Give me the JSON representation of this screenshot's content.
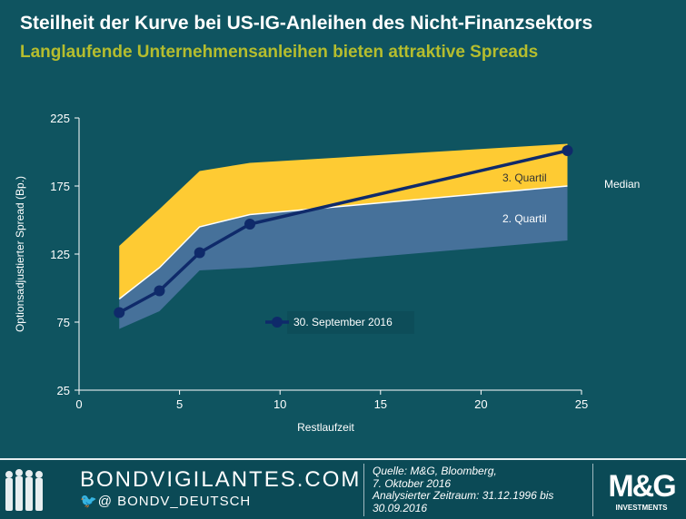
{
  "title": "Steilheit der Kurve bei US-IG-Anleihen des Nicht-Finanzsektors",
  "subtitle": "Langlaufende Unternehmensanleihen bieten attraktive Spreads",
  "chart_data": {
    "type": "area",
    "xlabel": "Restlaufzeit",
    "ylabel": "Optionsadjustierter Spread (Bp.)",
    "xlim": [
      0,
      25
    ],
    "ylim": [
      25,
      225
    ],
    "xticks": [
      "0",
      "5",
      "10",
      "15",
      "20",
      "25"
    ],
    "yticks": [
      "25",
      "75",
      "125",
      "175",
      "225"
    ],
    "band_x": [
      2,
      4,
      6,
      8.5,
      24.3
    ],
    "lower_quartile": [
      70,
      83,
      113,
      115,
      135
    ],
    "median": [
      92,
      115,
      145,
      154,
      175
    ],
    "upper_quartile": [
      131,
      158,
      186,
      192,
      206
    ],
    "series": [
      {
        "name": "30. September 2016",
        "x": [
          2,
          4,
          6,
          8.5,
          24.3
        ],
        "values": [
          82,
          98,
          126,
          147,
          201
        ]
      }
    ],
    "annotations": {
      "q3": "3. Quartil",
      "q2": "2. Quartil",
      "median": "Median"
    },
    "colors": {
      "q3": "#fecb33",
      "q2": "#46719a",
      "line": "#0f2a6a"
    }
  },
  "footer": {
    "site": "BONDVIGILANTES.COM",
    "twitter": "@ BONDV_DEUTSCH",
    "source_lines": [
      "Quelle: M&G, Bloomberg,",
      "7. Oktober 2016",
      "Analysierter Zeitraum: 31.12.1996 bis",
      "30.09.2016"
    ],
    "logo": "M&G",
    "logo_sub": "INVESTMENTS"
  }
}
